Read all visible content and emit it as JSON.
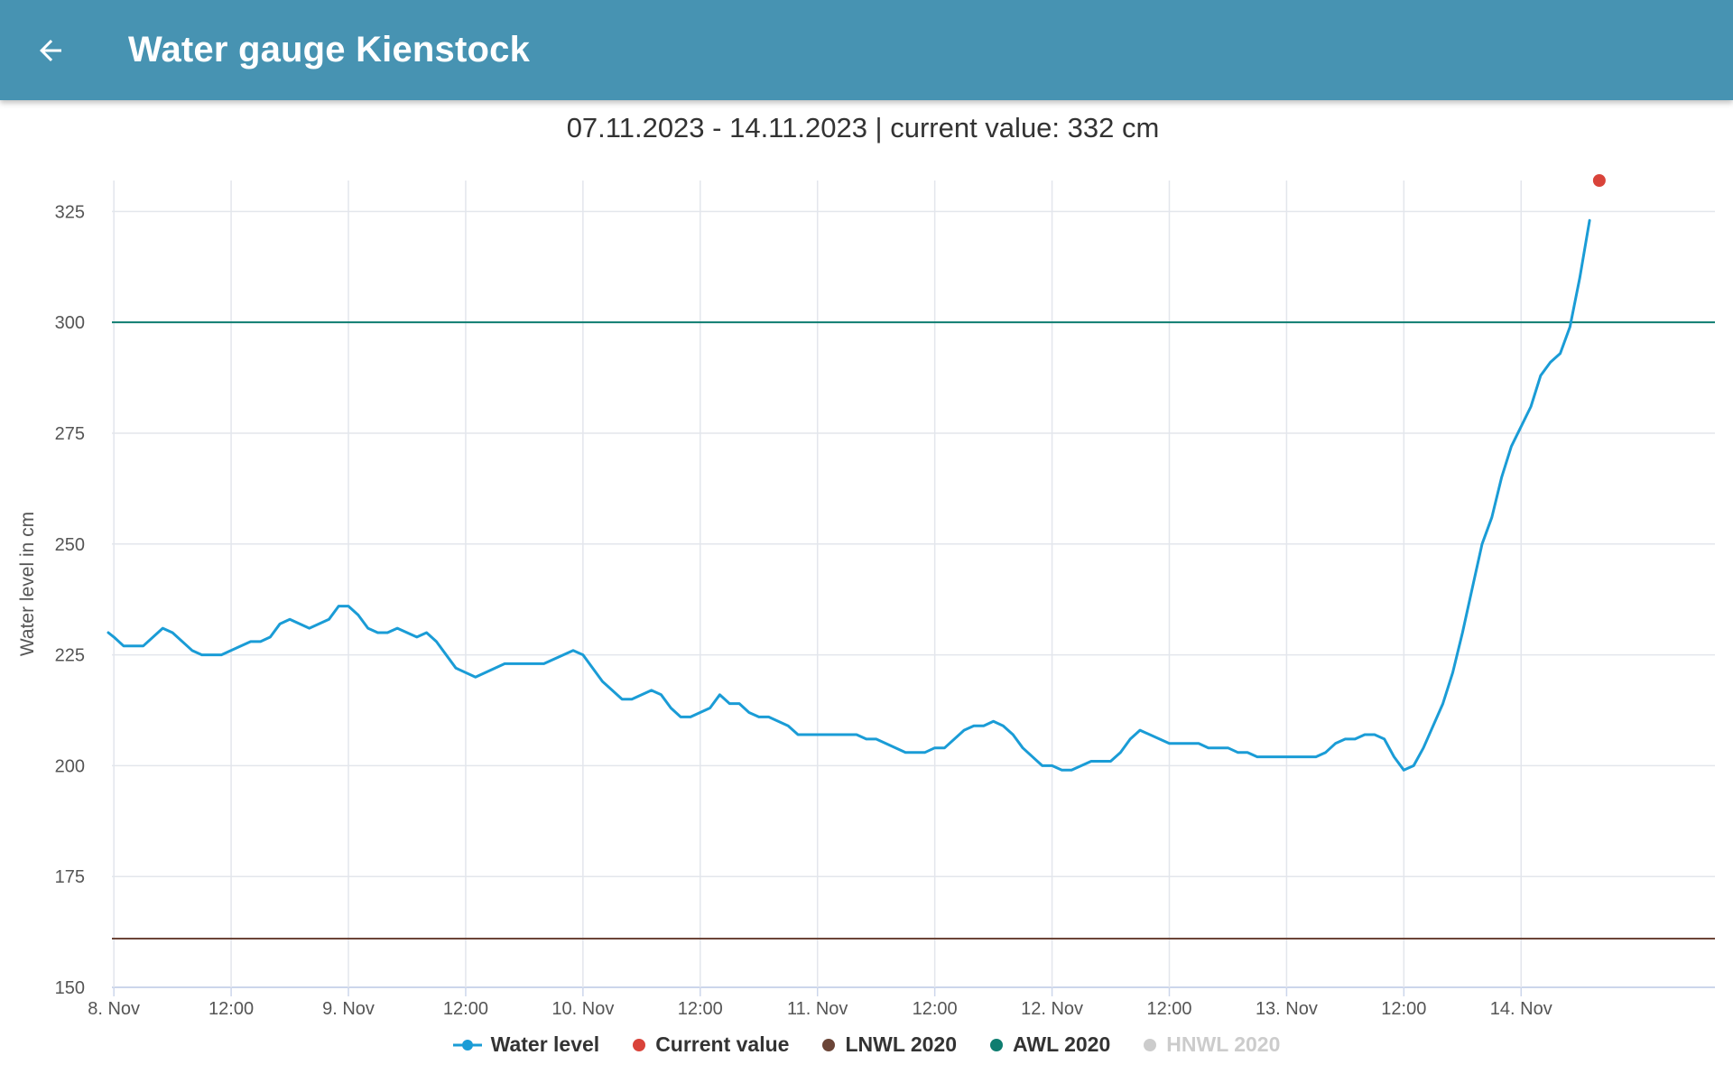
{
  "header": {
    "title": "Water gauge Kienstock",
    "back_icon": "arrow-back-icon"
  },
  "colors": {
    "appbar": "#4793b2",
    "water_level": "#1a9cd6",
    "current_value": "#d9433a",
    "lnwl": "#6b4538",
    "awl": "#0e7d70",
    "hnwl_inactive": "#cccccc",
    "grid": "#e3e6ec"
  },
  "chart_data": {
    "type": "line",
    "subtitle": "07.11.2023 - 14.11.2023 | current value: 332 cm",
    "ylabel": "Water level in cm",
    "xlabel": "",
    "ylim": [
      150,
      332
    ],
    "yticks": [
      150,
      175,
      200,
      225,
      250,
      275,
      300,
      325
    ],
    "xlim": [
      "2023-11-07T23:48",
      "2023-11-14T19:50"
    ],
    "xticks": [
      {
        "t": "2023-11-08T00:00",
        "label": "8. Nov"
      },
      {
        "t": "2023-11-08T12:00",
        "label": "12:00"
      },
      {
        "t": "2023-11-09T00:00",
        "label": "9. Nov"
      },
      {
        "t": "2023-11-09T12:00",
        "label": "12:00"
      },
      {
        "t": "2023-11-10T00:00",
        "label": "10. Nov"
      },
      {
        "t": "2023-11-10T12:00",
        "label": "12:00"
      },
      {
        "t": "2023-11-11T00:00",
        "label": "11. Nov"
      },
      {
        "t": "2023-11-11T12:00",
        "label": "12:00"
      },
      {
        "t": "2023-11-12T00:00",
        "label": "12. Nov"
      },
      {
        "t": "2023-11-12T12:00",
        "label": "12:00"
      },
      {
        "t": "2023-11-13T00:00",
        "label": "13. Nov"
      },
      {
        "t": "2023-11-13T12:00",
        "label": "12:00"
      },
      {
        "t": "2023-11-14T00:00",
        "label": "14. Nov"
      }
    ],
    "grid": true,
    "legend_position": "bottom",
    "series": [
      {
        "name": "Water level",
        "color": "#1a9cd6",
        "points": [
          [
            "2023-11-07T23:26",
            230
          ],
          [
            "2023-11-08T00:00",
            229
          ],
          [
            "2023-11-08T01:00",
            227
          ],
          [
            "2023-11-08T03:00",
            227
          ],
          [
            "2023-11-08T05:00",
            231
          ],
          [
            "2023-11-08T06:00",
            230
          ],
          [
            "2023-11-08T08:00",
            226
          ],
          [
            "2023-11-08T09:00",
            225
          ],
          [
            "2023-11-08T11:00",
            225
          ],
          [
            "2023-11-08T13:00",
            227
          ],
          [
            "2023-11-08T14:00",
            228
          ],
          [
            "2023-11-08T15:00",
            228
          ],
          [
            "2023-11-08T16:00",
            229
          ],
          [
            "2023-11-08T17:00",
            232
          ],
          [
            "2023-11-08T18:00",
            233
          ],
          [
            "2023-11-08T20:00",
            231
          ],
          [
            "2023-11-08T22:00",
            233
          ],
          [
            "2023-11-08T23:00",
            236
          ],
          [
            "2023-11-09T00:00",
            236
          ],
          [
            "2023-11-09T01:00",
            234
          ],
          [
            "2023-11-09T02:00",
            231
          ],
          [
            "2023-11-09T03:00",
            230
          ],
          [
            "2023-11-09T04:00",
            230
          ],
          [
            "2023-11-09T05:00",
            231
          ],
          [
            "2023-11-09T07:00",
            229
          ],
          [
            "2023-11-09T08:00",
            230
          ],
          [
            "2023-11-09T09:00",
            228
          ],
          [
            "2023-11-09T11:00",
            222
          ],
          [
            "2023-11-09T13:00",
            220
          ],
          [
            "2023-11-09T16:00",
            223
          ],
          [
            "2023-11-09T18:00",
            223
          ],
          [
            "2023-11-09T20:00",
            223
          ],
          [
            "2023-11-09T23:00",
            226
          ],
          [
            "2023-11-10T00:00",
            225
          ],
          [
            "2023-11-10T02:00",
            219
          ],
          [
            "2023-11-10T04:00",
            215
          ],
          [
            "2023-11-10T05:00",
            215
          ],
          [
            "2023-11-10T07:00",
            217
          ],
          [
            "2023-11-10T08:00",
            216
          ],
          [
            "2023-11-10T09:00",
            213
          ],
          [
            "2023-11-10T10:00",
            211
          ],
          [
            "2023-11-10T11:00",
            211
          ],
          [
            "2023-11-10T13:00",
            213
          ],
          [
            "2023-11-10T14:00",
            216
          ],
          [
            "2023-11-10T15:00",
            214
          ],
          [
            "2023-11-10T16:00",
            214
          ],
          [
            "2023-11-10T17:00",
            212
          ],
          [
            "2023-11-10T18:00",
            211
          ],
          [
            "2023-11-10T19:00",
            211
          ],
          [
            "2023-11-10T21:00",
            209
          ],
          [
            "2023-11-10T22:00",
            207
          ],
          [
            "2023-11-11T02:00",
            207
          ],
          [
            "2023-11-11T04:00",
            207
          ],
          [
            "2023-11-11T05:00",
            206
          ],
          [
            "2023-11-11T06:00",
            206
          ],
          [
            "2023-11-11T08:00",
            204
          ],
          [
            "2023-11-11T09:00",
            203
          ],
          [
            "2023-11-11T11:00",
            203
          ],
          [
            "2023-11-11T12:00",
            204
          ],
          [
            "2023-11-11T13:00",
            204
          ],
          [
            "2023-11-11T15:00",
            208
          ],
          [
            "2023-11-11T16:00",
            209
          ],
          [
            "2023-11-11T17:00",
            209
          ],
          [
            "2023-11-11T18:00",
            210
          ],
          [
            "2023-11-11T19:00",
            209
          ],
          [
            "2023-11-11T20:00",
            207
          ],
          [
            "2023-11-11T21:00",
            204
          ],
          [
            "2023-11-11T23:00",
            200
          ],
          [
            "2023-11-12T00:00",
            200
          ],
          [
            "2023-11-12T01:00",
            199
          ],
          [
            "2023-11-12T02:00",
            199
          ],
          [
            "2023-11-12T04:00",
            201
          ],
          [
            "2023-11-12T06:00",
            201
          ],
          [
            "2023-11-12T07:00",
            203
          ],
          [
            "2023-11-12T08:00",
            206
          ],
          [
            "2023-11-12T09:00",
            208
          ],
          [
            "2023-11-12T11:00",
            206
          ],
          [
            "2023-11-12T12:00",
            205
          ],
          [
            "2023-11-12T15:00",
            205
          ],
          [
            "2023-11-12T16:00",
            204
          ],
          [
            "2023-11-12T18:00",
            204
          ],
          [
            "2023-11-12T19:00",
            203
          ],
          [
            "2023-11-12T20:00",
            203
          ],
          [
            "2023-11-12T21:00",
            202
          ],
          [
            "2023-11-13T03:00",
            202
          ],
          [
            "2023-11-13T04:00",
            203
          ],
          [
            "2023-11-13T05:00",
            205
          ],
          [
            "2023-11-13T06:00",
            206
          ],
          [
            "2023-11-13T07:00",
            206
          ],
          [
            "2023-11-13T08:00",
            207
          ],
          [
            "2023-11-13T09:00",
            207
          ],
          [
            "2023-11-13T10:00",
            206
          ],
          [
            "2023-11-13T11:00",
            202
          ],
          [
            "2023-11-13T12:00",
            199
          ],
          [
            "2023-11-13T13:00",
            200
          ],
          [
            "2023-11-13T14:00",
            204
          ],
          [
            "2023-11-13T16:00",
            214
          ],
          [
            "2023-11-13T17:00",
            221
          ],
          [
            "2023-11-13T18:00",
            230
          ],
          [
            "2023-11-13T19:00",
            240
          ],
          [
            "2023-11-13T20:00",
            250
          ],
          [
            "2023-11-13T21:00",
            256
          ],
          [
            "2023-11-13T22:00",
            265
          ],
          [
            "2023-11-13T23:00",
            272
          ],
          [
            "2023-11-14T01:00",
            281
          ],
          [
            "2023-11-14T02:00",
            288
          ],
          [
            "2023-11-14T03:00",
            291
          ],
          [
            "2023-11-14T04:00",
            293
          ],
          [
            "2023-11-14T05:00",
            299
          ],
          [
            "2023-11-14T06:00",
            310
          ],
          [
            "2023-11-14T07:00",
            323
          ]
        ]
      },
      {
        "name": "Current value",
        "color": "#d9433a",
        "points": [
          [
            "2023-11-14T08:00",
            332
          ]
        ]
      },
      {
        "name": "LNWL 2020",
        "color": "#6b4538",
        "value": 161
      },
      {
        "name": "AWL 2020",
        "color": "#0e7d70",
        "value": 300
      },
      {
        "name": "HNWL 2020",
        "color": "#cccccc",
        "hidden": true
      }
    ]
  }
}
